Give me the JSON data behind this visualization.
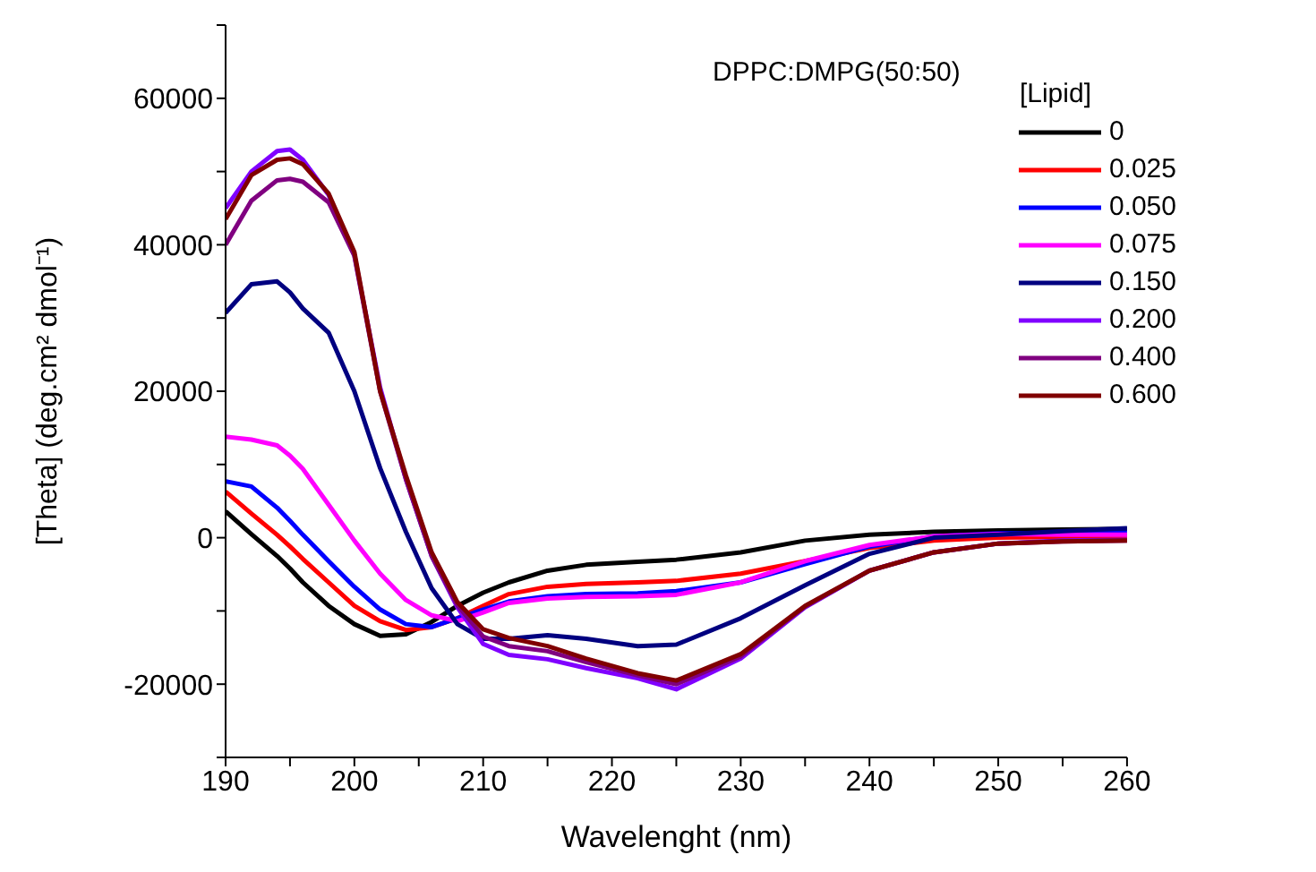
{
  "chart_data": {
    "type": "line",
    "xlabel": "Wavelenght (nm)",
    "ylabel": "[Theta] (deg.cm² dmol⁻¹)",
    "legend_title": "[Lipid]",
    "annotations": [
      "DPPC:DMPG(50:50)"
    ],
    "x": [
      190,
      192,
      194,
      195,
      196,
      198,
      200,
      202,
      204,
      206,
      208,
      210,
      212,
      215,
      218,
      222,
      225,
      230,
      235,
      240,
      245,
      250,
      255,
      260
    ],
    "series": [
      {
        "name": "0",
        "color": "#000000",
        "values": [
          3600,
          500,
          -2500,
          -4200,
          -6100,
          -9300,
          -11800,
          -13400,
          -13200,
          -11500,
          -9300,
          -7500,
          -6100,
          -4500,
          -3700,
          -3300,
          -3000,
          -2000,
          -400,
          400,
          800,
          1000,
          1100,
          1200
        ]
      },
      {
        "name": "0.025",
        "color": "#ff0000",
        "values": [
          6300,
          3300,
          400,
          -1200,
          -2900,
          -6100,
          -9300,
          -11400,
          -12600,
          -12200,
          -11000,
          -9300,
          -7700,
          -6700,
          -6300,
          -6100,
          -5900,
          -4900,
          -3200,
          -1400,
          -400,
          0,
          100,
          200
        ]
      },
      {
        "name": "0.050",
        "color": "#0000ff",
        "values": [
          7700,
          7000,
          4100,
          2300,
          400,
          -3200,
          -6700,
          -9800,
          -11800,
          -12200,
          -11000,
          -9800,
          -8700,
          -8000,
          -7700,
          -7600,
          -7300,
          -6100,
          -3600,
          -1200,
          200,
          600,
          600,
          700
        ]
      },
      {
        "name": "0.075",
        "color": "#ff00ff",
        "values": [
          13800,
          13400,
          12600,
          11200,
          9400,
          4500,
          -400,
          -4900,
          -8500,
          -10600,
          -11400,
          -10200,
          -8900,
          -8300,
          -8100,
          -8000,
          -7800,
          -6100,
          -3200,
          -1000,
          200,
          500,
          400,
          400
        ]
      },
      {
        "name": "0.150",
        "color": "#000080",
        "values": [
          30700,
          34600,
          35000,
          33500,
          31300,
          28000,
          20000,
          9500,
          800,
          -6900,
          -11800,
          -13800,
          -13800,
          -13300,
          -13800,
          -14800,
          -14600,
          -11000,
          -6500,
          -2200,
          0,
          400,
          900,
          1300
        ]
      },
      {
        "name": "0.200",
        "color": "#8000ff",
        "values": [
          45000,
          50000,
          52800,
          53000,
          51600,
          46800,
          38600,
          20500,
          8000,
          -2500,
          -9500,
          -14500,
          -16000,
          -16600,
          -17800,
          -19200,
          -20700,
          -16500,
          -9500,
          -4500,
          -2000,
          -800,
          -400,
          -300
        ]
      },
      {
        "name": "0.400",
        "color": "#800080",
        "values": [
          40000,
          46000,
          48800,
          49000,
          48600,
          45800,
          38500,
          20000,
          8000,
          -2500,
          -9200,
          -13500,
          -14800,
          -15500,
          -17000,
          -18800,
          -20000,
          -16200,
          -9400,
          -4500,
          -2000,
          -800,
          -500,
          -400
        ]
      },
      {
        "name": "0.600",
        "color": "#800000",
        "values": [
          43500,
          49500,
          51600,
          51800,
          51000,
          47000,
          39000,
          20000,
          8500,
          -2000,
          -8800,
          -12500,
          -13700,
          -14800,
          -16500,
          -18500,
          -19500,
          -15900,
          -9300,
          -4500,
          -2000,
          -800,
          -500,
          -400
        ]
      }
    ],
    "xlim": [
      190,
      260
    ],
    "xticks": [
      190,
      {
        "value": 195,
        "label": null
      },
      200,
      {
        "value": 205,
        "label": null
      },
      210,
      {
        "value": 215,
        "label": null
      },
      220,
      {
        "value": 225,
        "label": null
      },
      230,
      {
        "value": 235,
        "label": null
      },
      240,
      {
        "value": 245,
        "label": null
      },
      250,
      {
        "value": 255,
        "label": null
      },
      260
    ],
    "ylim": [
      -30000,
      70000
    ],
    "yticks": [
      {
        "value": -30000,
        "label": null
      },
      -20000,
      {
        "value": -10000,
        "label": null
      },
      0,
      {
        "value": 10000,
        "label": null
      },
      20000,
      {
        "value": 30000,
        "label": null
      },
      40000,
      {
        "value": 50000,
        "label": null
      },
      60000,
      {
        "value": 70000,
        "label": null
      }
    ],
    "grid": false,
    "legend": "top right",
    "marker": "none",
    "line_style": "solid"
  }
}
